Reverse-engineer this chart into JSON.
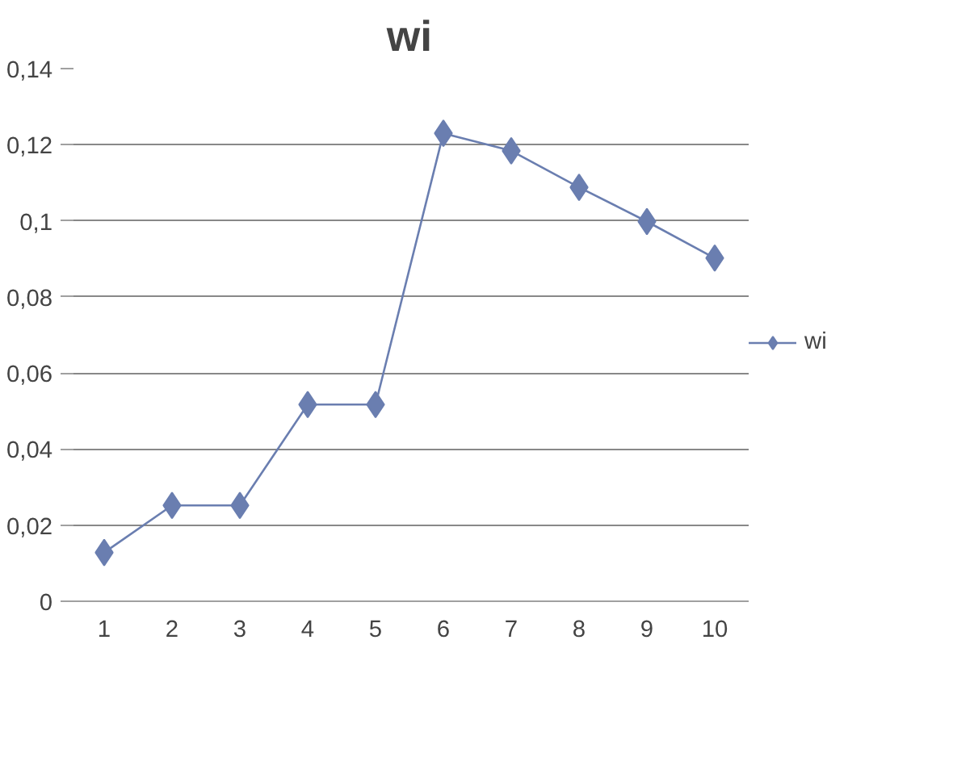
{
  "chart_data": {
    "type": "line",
    "title": "wi",
    "categories": [
      "1",
      "2",
      "3",
      "4",
      "5",
      "6",
      "7",
      "8",
      "9",
      "10"
    ],
    "series": [
      {
        "name": "wi",
        "color": "#6a7eb0",
        "values": [
          0.0128,
          0.0252,
          0.0252,
          0.0517,
          0.0517,
          0.123,
          0.1184,
          0.1088,
          0.0998,
          0.0902
        ]
      }
    ],
    "ylim": [
      0,
      0.14
    ],
    "yticks": [
      0,
      {
        "value": 0.02,
        "label": "0,02"
      },
      {
        "value": 0.04,
        "label": "0,04"
      },
      {
        "value": 0.06,
        "label": "0,06"
      },
      {
        "value": 0.08,
        "label": "0,08"
      },
      {
        "value": 0.1,
        "label": "0,1"
      },
      {
        "value": 0.12,
        "label": "0,12"
      },
      {
        "value": 0.14,
        "label": "0,14"
      }
    ],
    "grid": "y",
    "legend": "right",
    "marker": "diamond",
    "line_style": "solid"
  }
}
